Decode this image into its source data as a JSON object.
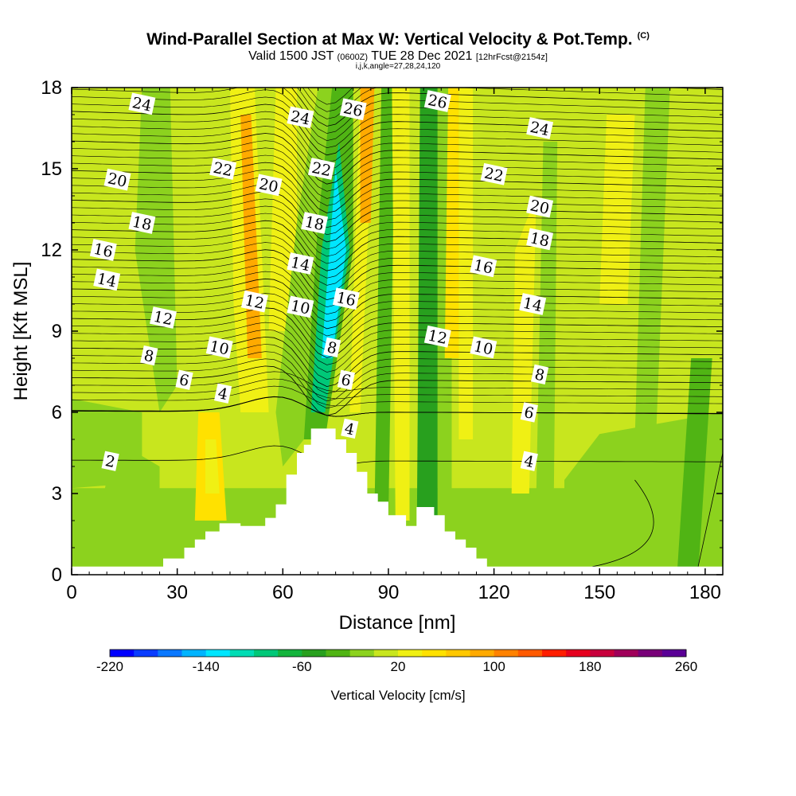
{
  "title": {
    "main": "Wind-Parallel Section at Max W: Vertical Velocity & Pot.Temp.",
    "corner": "(C)",
    "valid_pre": "Valid 1500 JST",
    "valid_z": "(0600Z)",
    "valid_date": "TUE 28 Dec 2021",
    "valid_fcst": "[12hrFcst@2154z]",
    "ijk": "i,j,k,angle=27,28,24,120"
  },
  "colorbar": {
    "title": "Vertical Velocity [cm/s]",
    "colors": [
      "#0000ff",
      "#0a3cff",
      "#0a78ff",
      "#00b4ff",
      "#00e6ff",
      "#00dcb4",
      "#00c878",
      "#14b43c",
      "#28a01e",
      "#50b414",
      "#8cd21e",
      "#c8e61e",
      "#f0f014",
      "#ffe100",
      "#ffc800",
      "#ffaa00",
      "#ff8200",
      "#ff5a00",
      "#ff1e00",
      "#e6001e",
      "#c8003c",
      "#a0005a",
      "#780078",
      "#5a0096"
    ],
    "tick_labels": [
      "-220",
      "-140",
      "-60",
      "20",
      "100",
      "180",
      "260"
    ]
  },
  "chart_data": {
    "type": "heatmap",
    "xlabel": "Distance [nm]",
    "ylabel": "Height [Kft MSL]",
    "xlim": [
      0,
      185
    ],
    "ylim": [
      0,
      18
    ],
    "x_ticks": [
      "0",
      "30",
      "60",
      "90",
      "120",
      "150",
      "180"
    ],
    "y_ticks": [
      "0",
      "3",
      "6",
      "9",
      "12",
      "15",
      "18"
    ],
    "field_colors": {
      "yellow_green": "#c8e61e",
      "green": "#8cd21e",
      "dark_green": "#50b414",
      "darker_green": "#28a01e",
      "teal": "#00c878",
      "cyan": "#00e6ff",
      "yellow": "#f0f014",
      "gold": "#ffe100",
      "orange": "#ffaa00",
      "terrain": "#ffffff",
      "contour": "#000000"
    },
    "terrain_profile": [
      [
        0,
        0.3
      ],
      [
        26,
        0.3
      ],
      [
        26,
        0.6
      ],
      [
        32,
        0.6
      ],
      [
        32,
        1.0
      ],
      [
        35,
        1.0
      ],
      [
        35,
        1.3
      ],
      [
        38,
        1.3
      ],
      [
        38,
        1.6
      ],
      [
        42,
        1.6
      ],
      [
        42,
        1.9
      ],
      [
        48,
        1.9
      ],
      [
        48,
        1.8
      ],
      [
        55,
        1.8
      ],
      [
        55,
        2.1
      ],
      [
        58,
        2.1
      ],
      [
        58,
        2.6
      ],
      [
        61,
        2.6
      ],
      [
        61,
        3.7
      ],
      [
        64,
        3.7
      ],
      [
        64,
        4.5
      ],
      [
        66,
        4.5
      ],
      [
        66,
        4.8
      ],
      [
        68,
        4.8
      ],
      [
        68,
        5.4
      ],
      [
        75,
        5.4
      ],
      [
        75,
        5.0
      ],
      [
        78,
        5.0
      ],
      [
        78,
        4.5
      ],
      [
        81,
        4.5
      ],
      [
        81,
        3.8
      ],
      [
        84,
        3.8
      ],
      [
        84,
        3.0
      ],
      [
        87,
        3.0
      ],
      [
        87,
        2.7
      ],
      [
        90,
        2.7
      ],
      [
        90,
        2.2
      ],
      [
        95,
        2.2
      ],
      [
        95,
        1.8
      ],
      [
        98,
        1.8
      ],
      [
        98,
        2.5
      ],
      [
        103,
        2.5
      ],
      [
        103,
        2.2
      ],
      [
        106,
        2.2
      ],
      [
        106,
        1.6
      ],
      [
        109,
        1.6
      ],
      [
        109,
        1.3
      ],
      [
        112,
        1.3
      ],
      [
        112,
        1.0
      ],
      [
        115,
        1.0
      ],
      [
        115,
        0.6
      ],
      [
        118,
        0.6
      ],
      [
        118,
        0.3
      ],
      [
        185,
        0.3
      ]
    ],
    "theta_contour_values": [
      2,
      4,
      6,
      8,
      10,
      12,
      14,
      16,
      18,
      20,
      22,
      24,
      26
    ],
    "contour_labels": [
      {
        "text": "24",
        "x": 20,
        "y": 17.4
      },
      {
        "text": "24",
        "x": 65,
        "y": 16.9
      },
      {
        "text": "26",
        "x": 80,
        "y": 17.2
      },
      {
        "text": "26",
        "x": 104,
        "y": 17.5
      },
      {
        "text": "24",
        "x": 133,
        "y": 16.5
      },
      {
        "text": "22",
        "x": 43,
        "y": 15.0
      },
      {
        "text": "22",
        "x": 71,
        "y": 15.0
      },
      {
        "text": "22",
        "x": 120,
        "y": 14.8
      },
      {
        "text": "20",
        "x": 13,
        "y": 14.6
      },
      {
        "text": "20",
        "x": 56,
        "y": 14.4
      },
      {
        "text": "20",
        "x": 133,
        "y": 13.6
      },
      {
        "text": "18",
        "x": 20,
        "y": 13.0
      },
      {
        "text": "18",
        "x": 69,
        "y": 13.0
      },
      {
        "text": "18",
        "x": 133,
        "y": 12.4
      },
      {
        "text": "16",
        "x": 9,
        "y": 12.0
      },
      {
        "text": "16",
        "x": 78,
        "y": 10.2
      },
      {
        "text": "16",
        "x": 117,
        "y": 11.4
      },
      {
        "text": "14",
        "x": 10,
        "y": 10.9
      },
      {
        "text": "14",
        "x": 65,
        "y": 11.5
      },
      {
        "text": "14",
        "x": 131,
        "y": 10.0
      },
      {
        "text": "12",
        "x": 26,
        "y": 9.5
      },
      {
        "text": "12",
        "x": 52,
        "y": 10.1
      },
      {
        "text": "12",
        "x": 104,
        "y": 8.8
      },
      {
        "text": "10",
        "x": 65,
        "y": 9.9
      },
      {
        "text": "10",
        "x": 42,
        "y": 8.4
      },
      {
        "text": "10",
        "x": 117,
        "y": 8.4
      },
      {
        "text": "8",
        "x": 22,
        "y": 8.1
      },
      {
        "text": "8",
        "x": 74,
        "y": 8.4
      },
      {
        "text": "8",
        "x": 133,
        "y": 7.4
      },
      {
        "text": "6",
        "x": 32,
        "y": 7.2
      },
      {
        "text": "6",
        "x": 78,
        "y": 7.2
      },
      {
        "text": "6",
        "x": 130,
        "y": 6.0
      },
      {
        "text": "4",
        "x": 43,
        "y": 6.7
      },
      {
        "text": "4",
        "x": 79,
        "y": 5.4
      },
      {
        "text": "4",
        "x": 130,
        "y": 4.2
      },
      {
        "text": "2",
        "x": 11,
        "y": 4.2
      }
    ]
  }
}
